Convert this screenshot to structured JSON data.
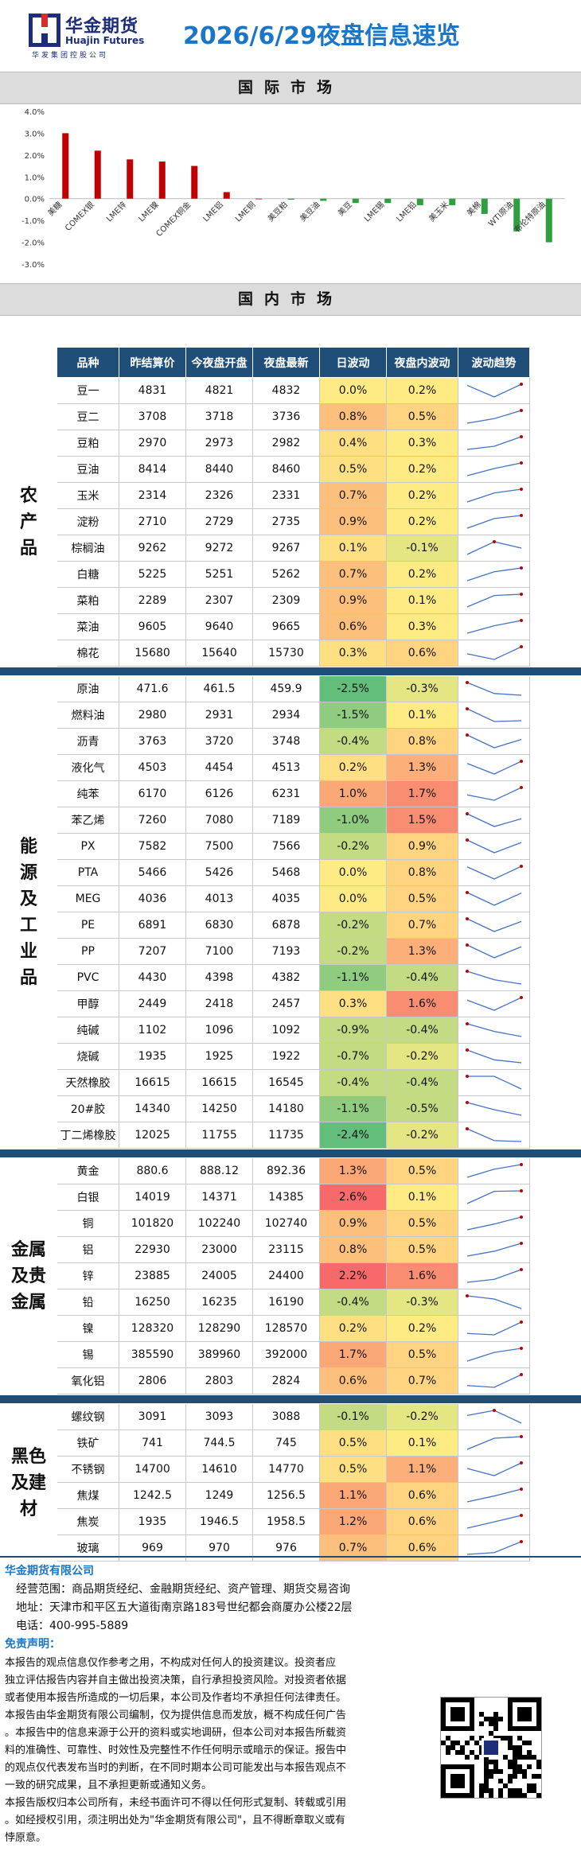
{
  "header": {
    "logo_cn": "华金期货",
    "logo_en": "Huajin Futures",
    "logo_sub": "华发集团控股公司",
    "title": "2026/6/29夜盘信息速览"
  },
  "sections": {
    "international": "国际市场",
    "domestic": "国内市场"
  },
  "chart_data": {
    "type": "bar",
    "categories": [
      "美糖",
      "COMEX银",
      "LME锌",
      "LME镍",
      "COMEX铜金",
      "LME铝",
      "LME铜",
      "美豆粕",
      "美豆油",
      "美豆",
      "LME锡",
      "LME铅",
      "美玉米",
      "美棉",
      "WTI原油",
      "布伦特原油"
    ],
    "values": [
      3.0,
      2.2,
      1.8,
      1.7,
      1.5,
      0.3,
      0.0,
      -0.05,
      -0.1,
      -0.2,
      -0.2,
      -0.3,
      -0.3,
      -0.7,
      -1.5,
      -2.0
    ],
    "ylim": [
      -3.0,
      4.0
    ],
    "yticks": [
      "4.0%",
      "3.0%",
      "2.0%",
      "1.0%",
      "0.0%",
      "-1.0%",
      "-2.0%",
      "-3.0%"
    ],
    "color_pos": "#c00000",
    "color_neg": "#2e9e3e"
  },
  "table": {
    "headers": [
      "品种",
      "昨结算价",
      "今夜盘开盘",
      "夜盘最新",
      "日波动",
      "夜盘内波动",
      "波动趋势"
    ],
    "groups": [
      {
        "label": [
          "农",
          "产",
          "品"
        ],
        "rows": [
          [
            "豆一",
            "4831",
            "4821",
            "4832",
            "0.0%",
            "0.2%"
          ],
          [
            "豆二",
            "3708",
            "3718",
            "3736",
            "0.8%",
            "0.5%"
          ],
          [
            "豆粕",
            "2970",
            "2973",
            "2982",
            "0.4%",
            "0.3%"
          ],
          [
            "豆油",
            "8414",
            "8440",
            "8460",
            "0.5%",
            "0.2%"
          ],
          [
            "玉米",
            "2314",
            "2326",
            "2331",
            "0.7%",
            "0.2%"
          ],
          [
            "淀粉",
            "2710",
            "2729",
            "2735",
            "0.9%",
            "0.2%"
          ],
          [
            "棕榈油",
            "9262",
            "9272",
            "9267",
            "0.1%",
            "-0.1%"
          ],
          [
            "白糖",
            "5225",
            "5251",
            "5262",
            "0.7%",
            "0.2%"
          ],
          [
            "菜粕",
            "2289",
            "2307",
            "2309",
            "0.9%",
            "0.1%"
          ],
          [
            "菜油",
            "9605",
            "9640",
            "9665",
            "0.6%",
            "0.3%"
          ],
          [
            "棉花",
            "15680",
            "15640",
            "15730",
            "0.3%",
            "0.6%"
          ]
        ]
      },
      {
        "label": [
          "能",
          "源",
          "及",
          "工",
          "业",
          "品"
        ],
        "rows": [
          [
            "原油",
            "471.6",
            "461.5",
            "459.9",
            "-2.5%",
            "-0.3%"
          ],
          [
            "燃料油",
            "2980",
            "2931",
            "2934",
            "-1.5%",
            "0.1%"
          ],
          [
            "沥青",
            "3763",
            "3720",
            "3748",
            "-0.4%",
            "0.8%"
          ],
          [
            "液化气",
            "4503",
            "4454",
            "4513",
            "0.2%",
            "1.3%"
          ],
          [
            "纯苯",
            "6170",
            "6126",
            "6231",
            "1.0%",
            "1.7%"
          ],
          [
            "苯乙烯",
            "7260",
            "7080",
            "7189",
            "-1.0%",
            "1.5%"
          ],
          [
            "PX",
            "7582",
            "7500",
            "7566",
            "-0.2%",
            "0.9%"
          ],
          [
            "PTA",
            "5466",
            "5426",
            "5468",
            "0.0%",
            "0.8%"
          ],
          [
            "MEG",
            "4036",
            "4013",
            "4035",
            "0.0%",
            "0.5%"
          ],
          [
            "PE",
            "6891",
            "6830",
            "6878",
            "-0.2%",
            "0.7%"
          ],
          [
            "PP",
            "7207",
            "7100",
            "7193",
            "-0.2%",
            "1.3%"
          ],
          [
            "PVC",
            "4430",
            "4398",
            "4382",
            "-1.1%",
            "-0.4%"
          ],
          [
            "甲醇",
            "2449",
            "2418",
            "2457",
            "0.3%",
            "1.6%"
          ],
          [
            "纯碱",
            "1102",
            "1096",
            "1092",
            "-0.9%",
            "-0.4%"
          ],
          [
            "烧碱",
            "1935",
            "1925",
            "1922",
            "-0.7%",
            "-0.2%"
          ],
          [
            "天然橡胶",
            "16615",
            "16615",
            "16545",
            "-0.4%",
            "-0.4%"
          ],
          [
            "20#胶",
            "14340",
            "14250",
            "14180",
            "-1.1%",
            "-0.5%"
          ],
          [
            "丁二烯橡胶",
            "12025",
            "11755",
            "11735",
            "-2.4%",
            "-0.2%"
          ]
        ]
      },
      {
        "label": [
          "金属",
          "及贵",
          "金属"
        ],
        "rows": [
          [
            "黄金",
            "880.6",
            "888.12",
            "892.36",
            "1.3%",
            "0.5%"
          ],
          [
            "白银",
            "14019",
            "14371",
            "14385",
            "2.6%",
            "0.1%"
          ],
          [
            "铜",
            "101820",
            "102240",
            "102740",
            "0.9%",
            "0.5%"
          ],
          [
            "铝",
            "22930",
            "23000",
            "23115",
            "0.8%",
            "0.5%"
          ],
          [
            "锌",
            "23885",
            "24005",
            "24400",
            "2.2%",
            "1.6%"
          ],
          [
            "铅",
            "16250",
            "16235",
            "16190",
            "-0.4%",
            "-0.3%"
          ],
          [
            "镍",
            "128320",
            "128290",
            "128570",
            "0.2%",
            "0.2%"
          ],
          [
            "锡",
            "385590",
            "389960",
            "392000",
            "1.7%",
            "0.5%"
          ],
          [
            "氧化铝",
            "2806",
            "2803",
            "2824",
            "0.6%",
            "0.7%"
          ]
        ]
      },
      {
        "label": [
          "黑色",
          "及建",
          "材"
        ],
        "rows": [
          [
            "螺纹钢",
            "3091",
            "3093",
            "3088",
            "-0.1%",
            "-0.2%"
          ],
          [
            "铁矿",
            "741",
            "744.5",
            "745",
            "0.5%",
            "0.1%"
          ],
          [
            "不锈钢",
            "14700",
            "14610",
            "14770",
            "0.5%",
            "1.1%"
          ],
          [
            "焦煤",
            "1242.5",
            "1249",
            "1256.5",
            "1.1%",
            "0.6%"
          ],
          [
            "焦炭",
            "1935",
            "1946.5",
            "1958.5",
            "1.2%",
            "0.6%"
          ],
          [
            "玻璃",
            "969",
            "970",
            "976",
            "0.7%",
            "0.6%"
          ]
        ]
      }
    ]
  },
  "footer": {
    "company": "华金期货有限公司",
    "scope": "经营范围：商品期货经纪、金融期货经纪、资产管理、期货交易咨询",
    "address": "地址：天津市和平区五大道街南京路183号世纪都会商厦办公楼22层",
    "phone": "电话：400-995-5889",
    "disclaimer_title": "免责声明：",
    "disclaimer_lines": [
      "本报告的观点信息仅作参考之用，不构成对任何人的投资建议。投资者应",
      "独立评估报告内容并自主做出投资决策，自行承担投资风险。对投资者依据",
      "或者使用本报告所造成的一切后果，本公司及作者均不承担任何法律责任。",
      "本报告由华金期货有限公司编制，仅为提供信息而发放，概不构成任何广告",
      "。本报告中的信息来源于公开的资料或实地调研，但本公司对本报告所载资",
      "料的准确性、可靠性、时效性及完整性不作任何明示或暗示的保证。报告中",
      "的观点仅代表发布当时的判断，在不同时期本公司可能发出与本报告观点不",
      "一致的研究成果，且不承担更新或通知义务。",
      "本报告版权归本公司所有，未经书面许可不得以任何形式复制、转载或引用",
      "。如经授权引用，须注明出处为\"华金期货有限公司\"，且不得断章取义或有",
      "悖原意。"
    ]
  }
}
